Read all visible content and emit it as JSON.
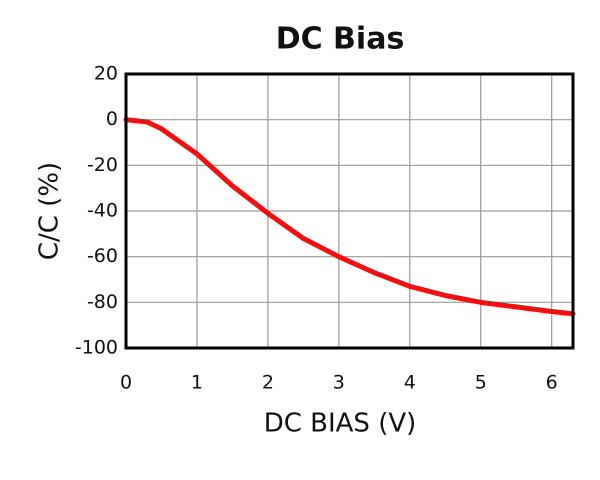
{
  "chart_data": {
    "type": "line",
    "title": "DC Bias",
    "xlabel": "DC BIAS (V)",
    "ylabel": "C/C (%)",
    "x": [
      0,
      0.3,
      0.5,
      1,
      1.5,
      2,
      2.5,
      3,
      3.5,
      4,
      4.5,
      5,
      5.5,
      6,
      6.3
    ],
    "values": [
      0,
      -1,
      -4,
      -15,
      -29,
      -41,
      -52,
      -60,
      -67,
      -73,
      -77,
      -80,
      -82,
      -84,
      -85
    ],
    "color": "#ee1111",
    "xlim": [
      0,
      6.3
    ],
    "xticks": [
      0,
      1,
      2,
      3,
      4,
      5,
      6
    ],
    "ylim": [
      -100,
      20
    ],
    "yticks": [
      -100,
      -80,
      -60,
      -40,
      -20,
      0,
      20
    ],
    "grid": true
  }
}
